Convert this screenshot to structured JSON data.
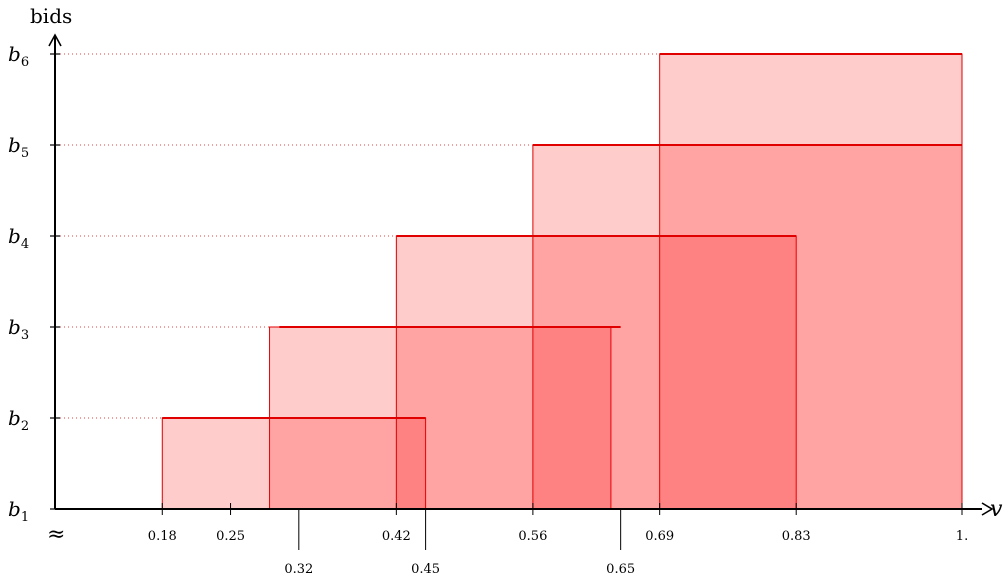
{
  "chart_data": {
    "type": "area",
    "ylabel": "bids",
    "xlabel": "v",
    "x_break_symbol": "≈",
    "xlim": [
      0.07,
      1.0
    ],
    "y_levels": [
      {
        "base": "b",
        "sub": "1"
      },
      {
        "base": "b",
        "sub": "2"
      },
      {
        "base": "b",
        "sub": "3"
      },
      {
        "base": "b",
        "sub": "4"
      },
      {
        "base": "b",
        "sub": "5"
      },
      {
        "base": "b",
        "sub": "6"
      }
    ],
    "x_ticks_upper": [
      {
        "value": 0.18,
        "label": "0.18"
      },
      {
        "value": 0.25,
        "label": "0.25"
      },
      {
        "value": 0.42,
        "label": "0.42"
      },
      {
        "value": 0.56,
        "label": "0.56"
      },
      {
        "value": 0.69,
        "label": "0.69"
      },
      {
        "value": 0.83,
        "label": "0.83"
      },
      {
        "value": 1.0,
        "label": "1."
      }
    ],
    "x_ticks_lower": [
      {
        "value": 0.32,
        "label": "0.32"
      },
      {
        "value": 0.45,
        "label": "0.45"
      },
      {
        "value": 0.65,
        "label": "0.65"
      }
    ],
    "dark_rects": [
      {
        "x0": 0.07,
        "x1": 0.25,
        "level": 1
      },
      {
        "x0": 0.18,
        "x1": 0.45,
        "level": 2
      },
      {
        "x0": 0.29,
        "x1": 0.64,
        "level": 3
      },
      {
        "x0": 0.42,
        "x1": 0.83,
        "level": 4
      },
      {
        "x0": 0.56,
        "x1": 1.0,
        "level": 5
      },
      {
        "x0": 0.69,
        "x1": 1.0,
        "level": 6
      }
    ],
    "bid_lines": [
      {
        "x0": 0.07,
        "x1": 0.25,
        "level": 1
      },
      {
        "x0": 0.18,
        "x1": 0.45,
        "level": 2
      },
      {
        "x0": 0.3,
        "x1": 0.65,
        "level": 3
      },
      {
        "x0": 0.42,
        "x1": 0.83,
        "level": 4
      },
      {
        "x0": 0.56,
        "x1": 1.0,
        "level": 5
      },
      {
        "x0": 0.69,
        "x1": 1.0,
        "level": 6
      }
    ],
    "dotted_guides": [
      {
        "level": 2,
        "x1": 0.215
      },
      {
        "level": 3,
        "x1": 0.29
      },
      {
        "level": 4,
        "x1": 0.42
      },
      {
        "level": 5,
        "x1": 0.56
      },
      {
        "level": 6,
        "x1": 0.69
      }
    ],
    "colors": {
      "fill": "#ff0000",
      "fill_opacity": 0.2,
      "stroke": "#e00000",
      "guide": "#e04040"
    },
    "grid": false,
    "legend": "none"
  }
}
